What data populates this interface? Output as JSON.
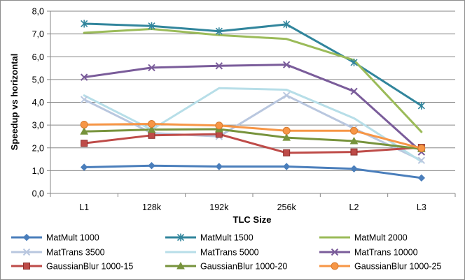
{
  "chart_data": {
    "type": "line",
    "title": "",
    "xlabel": "TLC Size",
    "ylabel": "Speedup vs horizontal",
    "categories": [
      "L1",
      "128k",
      "192k",
      "256k",
      "L2",
      "L3"
    ],
    "ylim": [
      0,
      8
    ],
    "ytick_step": 1,
    "yticks": [
      "0,0",
      "1,0",
      "2,0",
      "3,0",
      "4,0",
      "5,0",
      "6,0",
      "7,0",
      "8,0"
    ],
    "grid": "horizontal",
    "legend_position": "bottom",
    "series": [
      {
        "name": "MatMult 1000",
        "color": "#4a7ebb",
        "marker": "diamond",
        "values": [
          1.15,
          1.22,
          1.18,
          1.18,
          1.08,
          0.68
        ]
      },
      {
        "name": "MatMult 1500",
        "color": "#31859c",
        "marker": "star",
        "values": [
          7.45,
          7.35,
          7.12,
          7.42,
          5.75,
          3.85
        ]
      },
      {
        "name": "MatMult 2000",
        "color": "#9bbb59",
        "marker": "none",
        "values": [
          7.05,
          7.22,
          6.95,
          6.78,
          5.85,
          2.7
        ]
      },
      {
        "name": "MatTrans 3500",
        "color": "#b9c7df",
        "marker": "x",
        "values": [
          4.12,
          2.65,
          2.5,
          4.3,
          2.85,
          1.45
        ]
      },
      {
        "name": "MatTrans 5000",
        "color": "#b7dee8",
        "marker": "none",
        "values": [
          4.3,
          2.8,
          4.62,
          4.55,
          3.3,
          1.4
        ]
      },
      {
        "name": "MatTrans 10000",
        "color": "#7a5c9a",
        "marker": "x",
        "values": [
          5.1,
          5.52,
          5.6,
          5.65,
          4.48,
          1.82
        ]
      },
      {
        "name": "GaussianBlur 1000-15",
        "color": "#be4b48",
        "marker": "square",
        "values": [
          2.2,
          2.55,
          2.6,
          1.78,
          1.82,
          2.02
        ]
      },
      {
        "name": "GaussianBlur 1000-20",
        "color": "#77933c",
        "marker": "triangle",
        "values": [
          2.72,
          2.8,
          2.82,
          2.45,
          2.3,
          1.95
        ]
      },
      {
        "name": "GaussianBlur 1000-25",
        "color": "#f79646",
        "marker": "circle",
        "values": [
          3.02,
          3.05,
          2.98,
          2.75,
          2.75,
          1.98
        ]
      }
    ]
  }
}
